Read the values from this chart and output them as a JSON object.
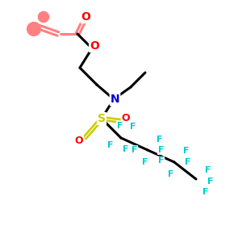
{
  "bg_color": "#ffffff",
  "bond_color": "#000000",
  "N_color": "#0000cc",
  "O_color": "#ff0000",
  "S_color": "#cccc00",
  "F_color": "#00cccc",
  "acrylate_color": "#ff8080",
  "line_width": 2.2,
  "figsize": [
    3.0,
    3.0
  ],
  "dpi": 100,
  "xlim": [
    0,
    10
  ],
  "ylim": [
    0,
    10
  ]
}
